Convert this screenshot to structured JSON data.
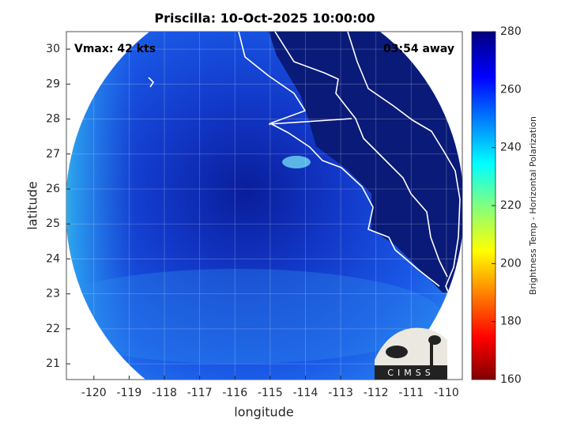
{
  "chart_data": {
    "type": "satellite-map",
    "title": "Priscilla: 10-Oct-2025 10:00:00",
    "xlabel": "longitude",
    "ylabel": "latitude",
    "xlim": [
      -120.78,
      -109.55
    ],
    "ylim": [
      20.55,
      30.5
    ],
    "xticks": [
      -120,
      -119,
      -118,
      -117,
      -116,
      -115,
      -114,
      -113,
      -112,
      -111,
      -110
    ],
    "yticks": [
      21,
      22,
      23,
      24,
      25,
      26,
      27,
      28,
      29,
      30
    ],
    "grid": true,
    "annotations": [
      "Vmax: 42 kts",
      "03:54 away"
    ],
    "colorbar": {
      "label": "Brightness Temp - Horizontal Polarization",
      "lim": [
        160,
        280
      ],
      "ticks": [
        160,
        180,
        200,
        220,
        240,
        260,
        280
      ]
    },
    "logo_text": "CIMSS"
  }
}
